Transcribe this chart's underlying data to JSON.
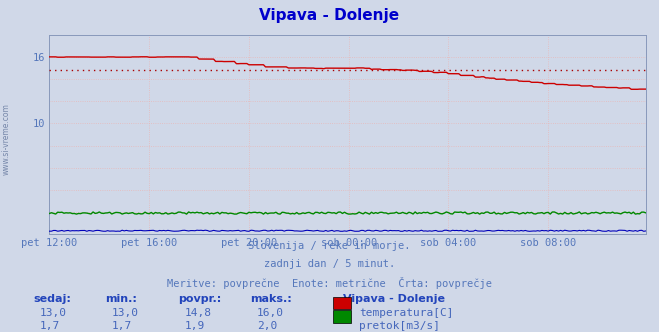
{
  "title": "Vipava - Dolenje",
  "title_color": "#0000cc",
  "bg_color": "#d0d8e8",
  "plot_bg_color": "#d0d8e8",
  "temp_color": "#cc0000",
  "flow_color": "#008800",
  "height_color": "#0000bb",
  "avg_line_color": "#cc0000",
  "ylim": [
    0,
    18
  ],
  "ytick_values": [
    10,
    16
  ],
  "x_tick_labels": [
    "pet 12:00",
    "pet 16:00",
    "pet 20:00",
    "sob 00:00",
    "sob 04:00",
    "sob 08:00"
  ],
  "x_tick_positions": [
    0,
    48,
    96,
    144,
    192,
    240
  ],
  "total_points": 288,
  "temp_avg": 14.8,
  "temp_min": 13.0,
  "temp_max": 16.0,
  "flow_avg": 1.9,
  "flow_min": 1.7,
  "flow_max": 2.0,
  "subtitle1": "Slovenija / reke in morje.",
  "subtitle2": "zadnji dan / 5 minut.",
  "subtitle3": "Meritve: povprečne  Enote: metrične  Črta: povprečje",
  "legend_title": "Vipava - Dolenje",
  "legend_temp": "temperatura[C]",
  "legend_flow": "pretok[m3/s]",
  "watermark": "www.si-vreme.com",
  "stat_headers": [
    "sedaj:",
    "min.:",
    "povpr.:",
    "maks.:"
  ],
  "stat_temp": [
    "13,0",
    "13,0",
    "14,8",
    "16,0"
  ],
  "stat_flow": [
    "1,7",
    "1,7",
    "1,9",
    "2,0"
  ]
}
